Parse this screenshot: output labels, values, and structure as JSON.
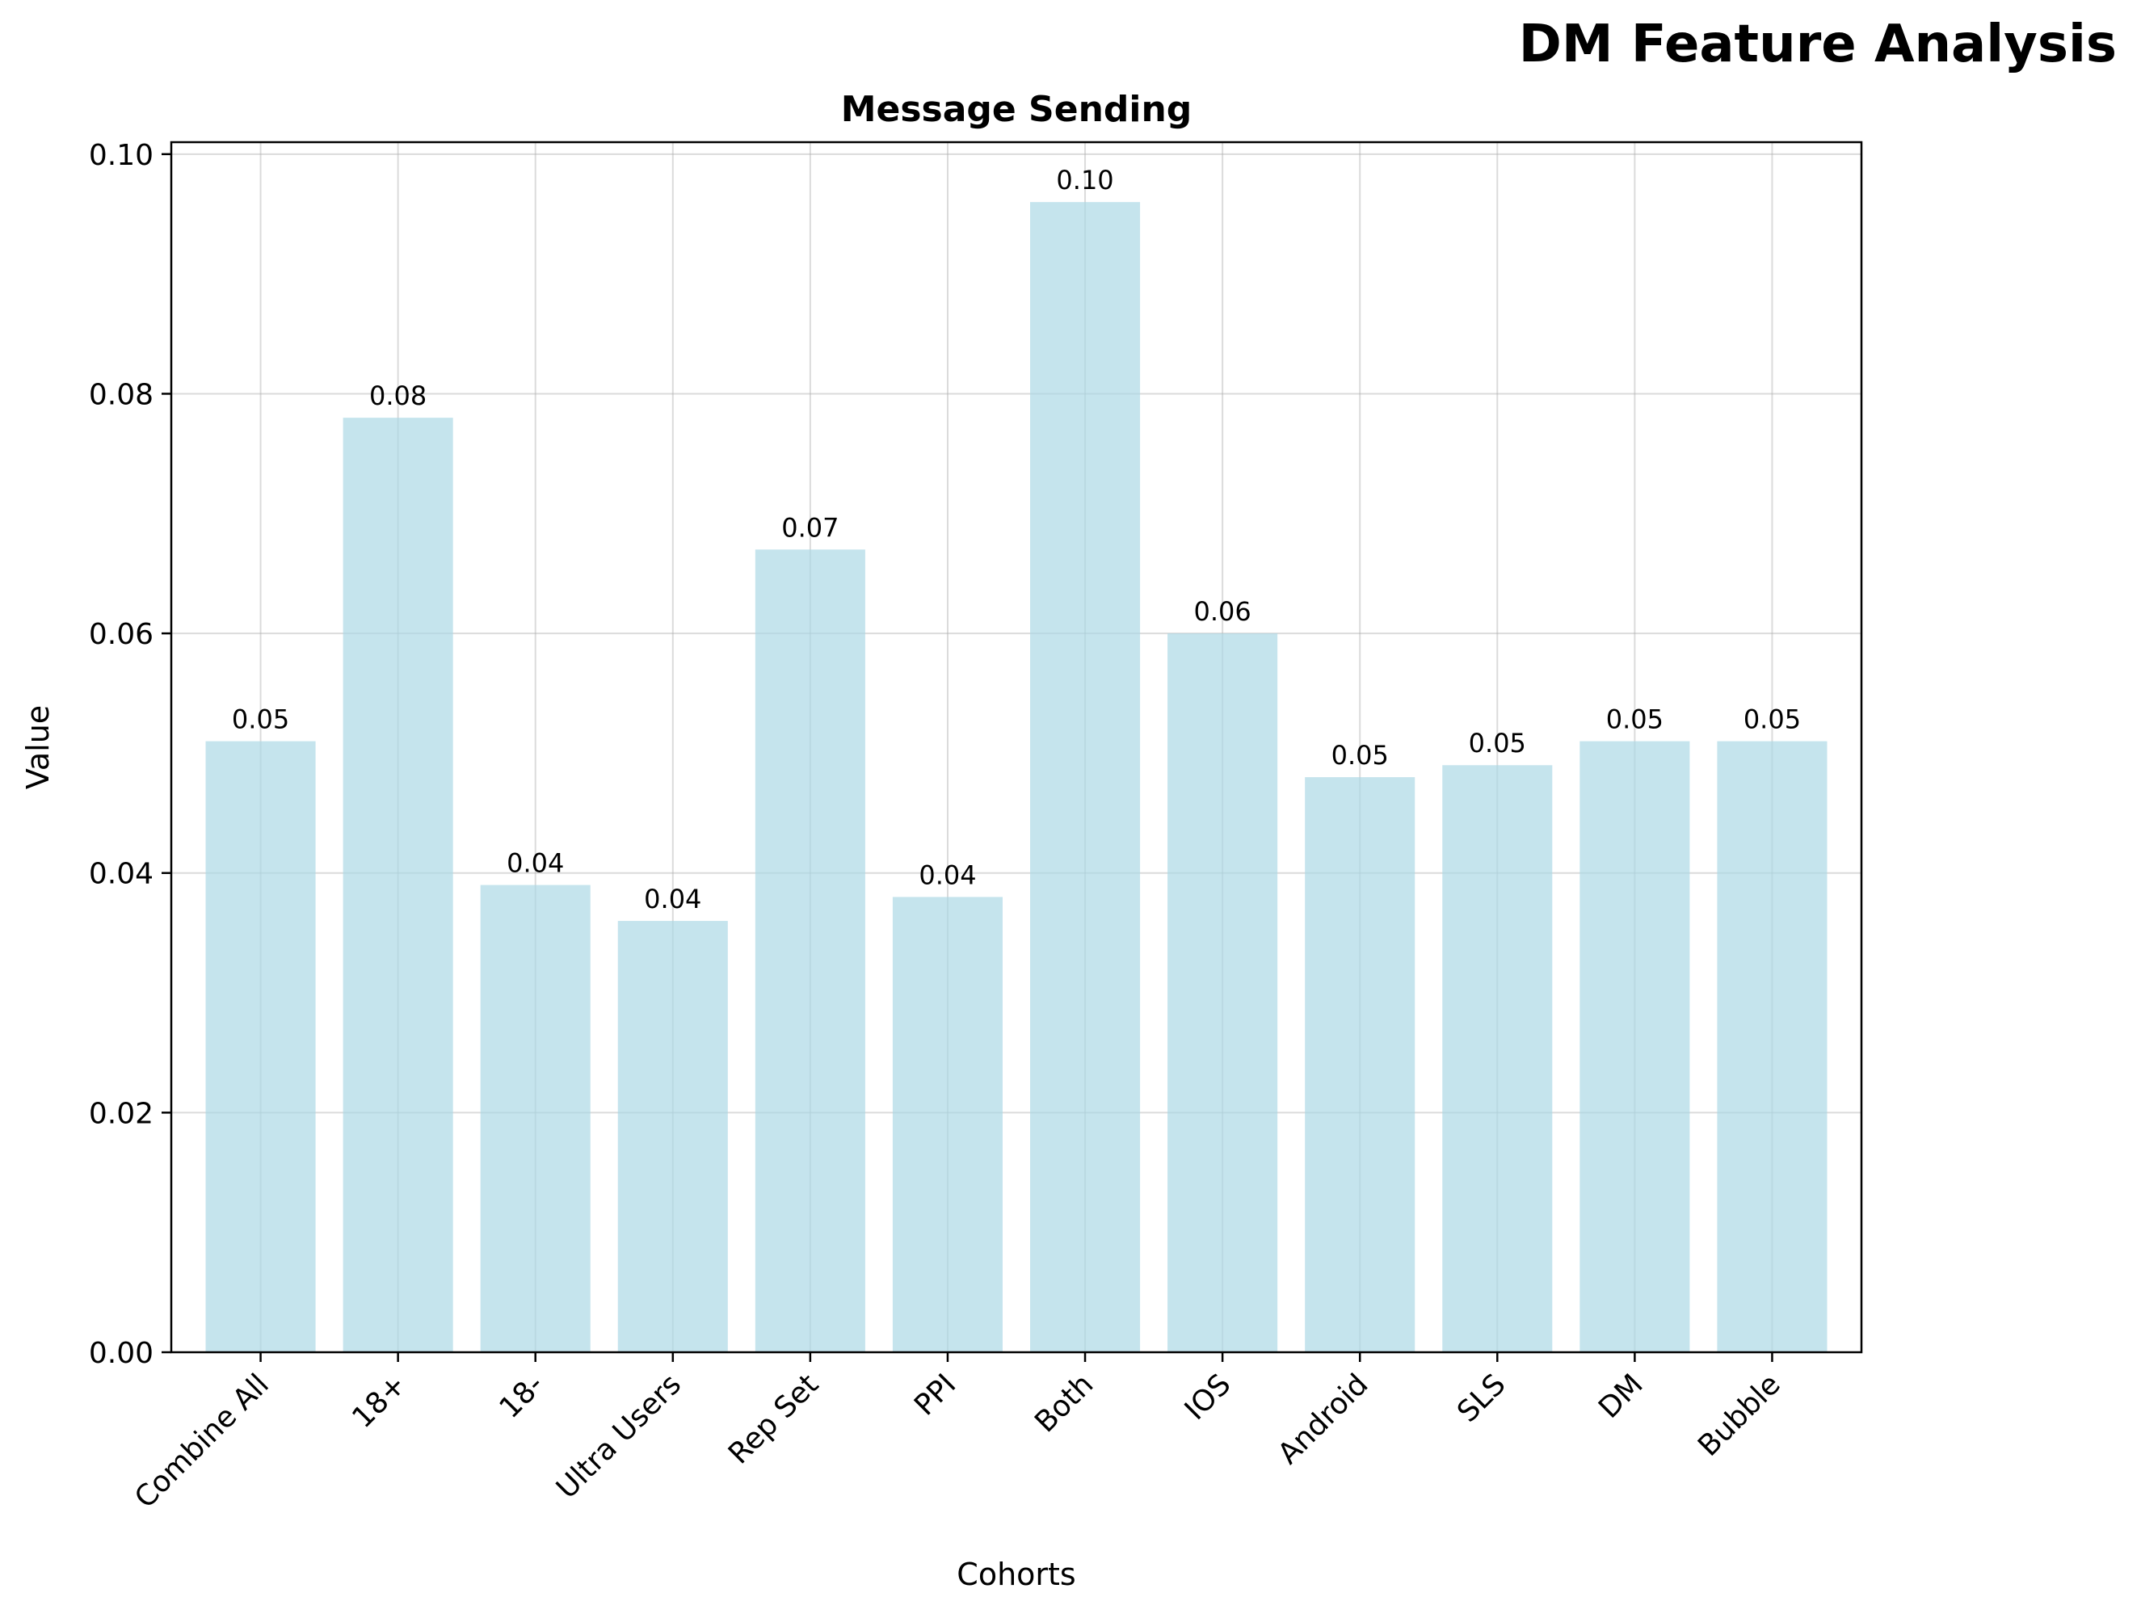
{
  "figure": {
    "suptitle": "DM Feature Analysis"
  },
  "chart_data": {
    "type": "bar",
    "title": "Message Sending",
    "xlabel": "Cohorts",
    "ylabel": "Value",
    "categories": [
      "Combine All",
      "18+",
      "18-",
      "Ultra Users",
      "Rep Set",
      "PPI",
      "Both",
      "IOS",
      "Android",
      "SLS",
      "DM",
      "Bubble"
    ],
    "values": [
      0.051,
      0.078,
      0.039,
      0.036,
      0.067,
      0.038,
      0.096,
      0.06,
      0.048,
      0.049,
      0.051,
      0.051
    ],
    "data_labels": [
      "0.05",
      "0.08",
      "0.04",
      "0.04",
      "0.07",
      "0.04",
      "0.10",
      "0.06",
      "0.05",
      "0.05",
      "0.05",
      "0.05"
    ],
    "ylim": [
      0,
      0.101
    ],
    "yticks": [
      0.0,
      0.02,
      0.04,
      0.06,
      0.08,
      0.1
    ],
    "ytick_labels": [
      "0.00",
      "0.02",
      "0.04",
      "0.06",
      "0.08",
      "0.10"
    ],
    "grid": true,
    "bar_color": "#add8e6",
    "legend": "none"
  }
}
